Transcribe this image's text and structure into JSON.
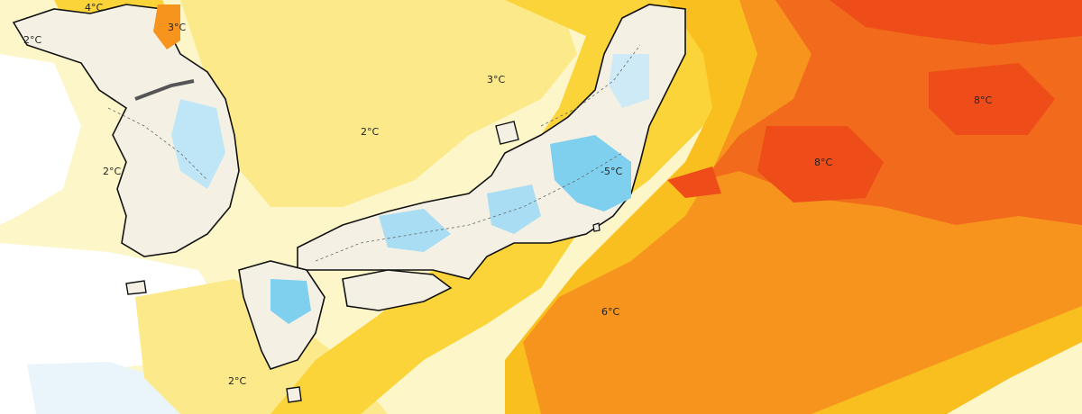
{
  "map": {
    "labels": {
      "l1": "4°C",
      "l2": "2°C",
      "l3": "3°C",
      "l4": "3°C",
      "l5": "2°C",
      "l6": "2°C",
      "l7": "-5°C",
      "l8": "8°C",
      "l9": "8°C",
      "l10": "6°C",
      "l11": "2°C"
    },
    "colors": {
      "pale": "#fdf6c8",
      "light_yellow": "#fce98a",
      "yellow": "#fbd43a",
      "gold": "#f9bf1f",
      "orange": "#f7941d",
      "deep_orange": "#f26a1b",
      "red_orange": "#ee4d1a",
      "cold_light": "#cfeaf7",
      "cold": "#7fd0ef",
      "coast": "#111111",
      "border": "#666666"
    }
  }
}
